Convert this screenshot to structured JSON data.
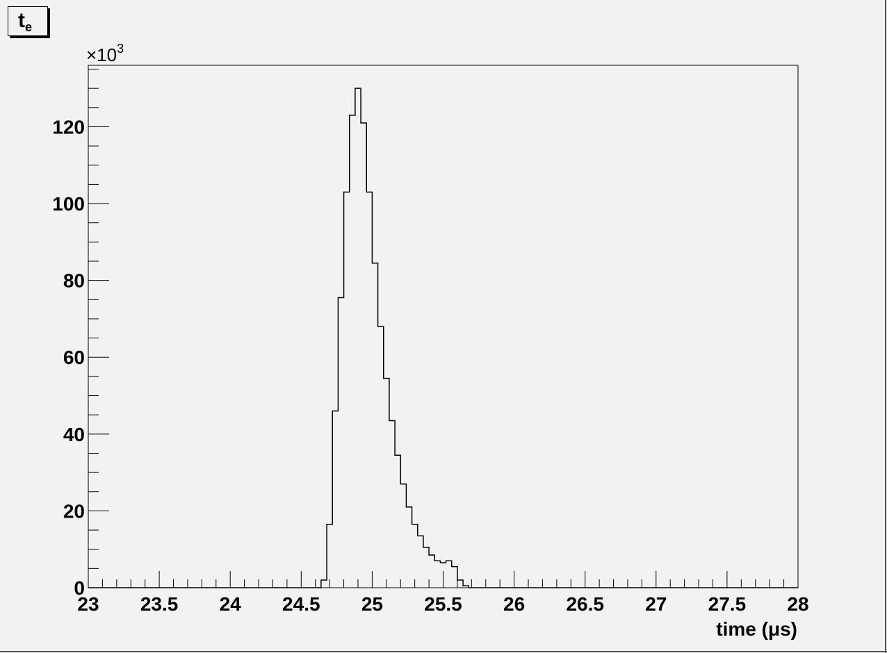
{
  "chart_data": {
    "type": "histogram",
    "title": "t",
    "title_subscript": "e",
    "xlabel": "time (μs)",
    "ylabel": "",
    "y_multiplier_text": "×10",
    "y_multiplier_exp": "3",
    "xlim": [
      23,
      28
    ],
    "ylim": [
      0,
      136
    ],
    "x_ticks": [
      "23",
      "23.5",
      "24",
      "24.5",
      "25",
      "25.5",
      "26",
      "26.5",
      "27",
      "27.5",
      "28"
    ],
    "y_ticks": [
      "0",
      "20",
      "40",
      "60",
      "80",
      "100",
      "120"
    ],
    "bin_width": 0.04,
    "bins": [
      {
        "x": 24.64,
        "value": 2
      },
      {
        "x": 24.68,
        "value": 16.5
      },
      {
        "x": 24.72,
        "value": 46
      },
      {
        "x": 24.76,
        "value": 75.5
      },
      {
        "x": 24.8,
        "value": 103
      },
      {
        "x": 24.84,
        "value": 123
      },
      {
        "x": 24.88,
        "value": 130
      },
      {
        "x": 24.92,
        "value": 121
      },
      {
        "x": 24.96,
        "value": 103
      },
      {
        "x": 25.0,
        "value": 84.5
      },
      {
        "x": 25.04,
        "value": 68
      },
      {
        "x": 25.08,
        "value": 54.5
      },
      {
        "x": 25.12,
        "value": 43.5
      },
      {
        "x": 25.16,
        "value": 34.5
      },
      {
        "x": 25.2,
        "value": 27
      },
      {
        "x": 25.24,
        "value": 21
      },
      {
        "x": 25.28,
        "value": 16.5
      },
      {
        "x": 25.32,
        "value": 13.5
      },
      {
        "x": 25.36,
        "value": 10.5
      },
      {
        "x": 25.4,
        "value": 8.5
      },
      {
        "x": 25.44,
        "value": 7
      },
      {
        "x": 25.48,
        "value": 6.5
      },
      {
        "x": 25.52,
        "value": 7
      },
      {
        "x": 25.56,
        "value": 5.5
      },
      {
        "x": 25.6,
        "value": 2
      },
      {
        "x": 25.64,
        "value": 0.5
      }
    ],
    "grid": false,
    "legend": "none",
    "line_color": "#000000",
    "background_color": "#f2f2f2"
  }
}
